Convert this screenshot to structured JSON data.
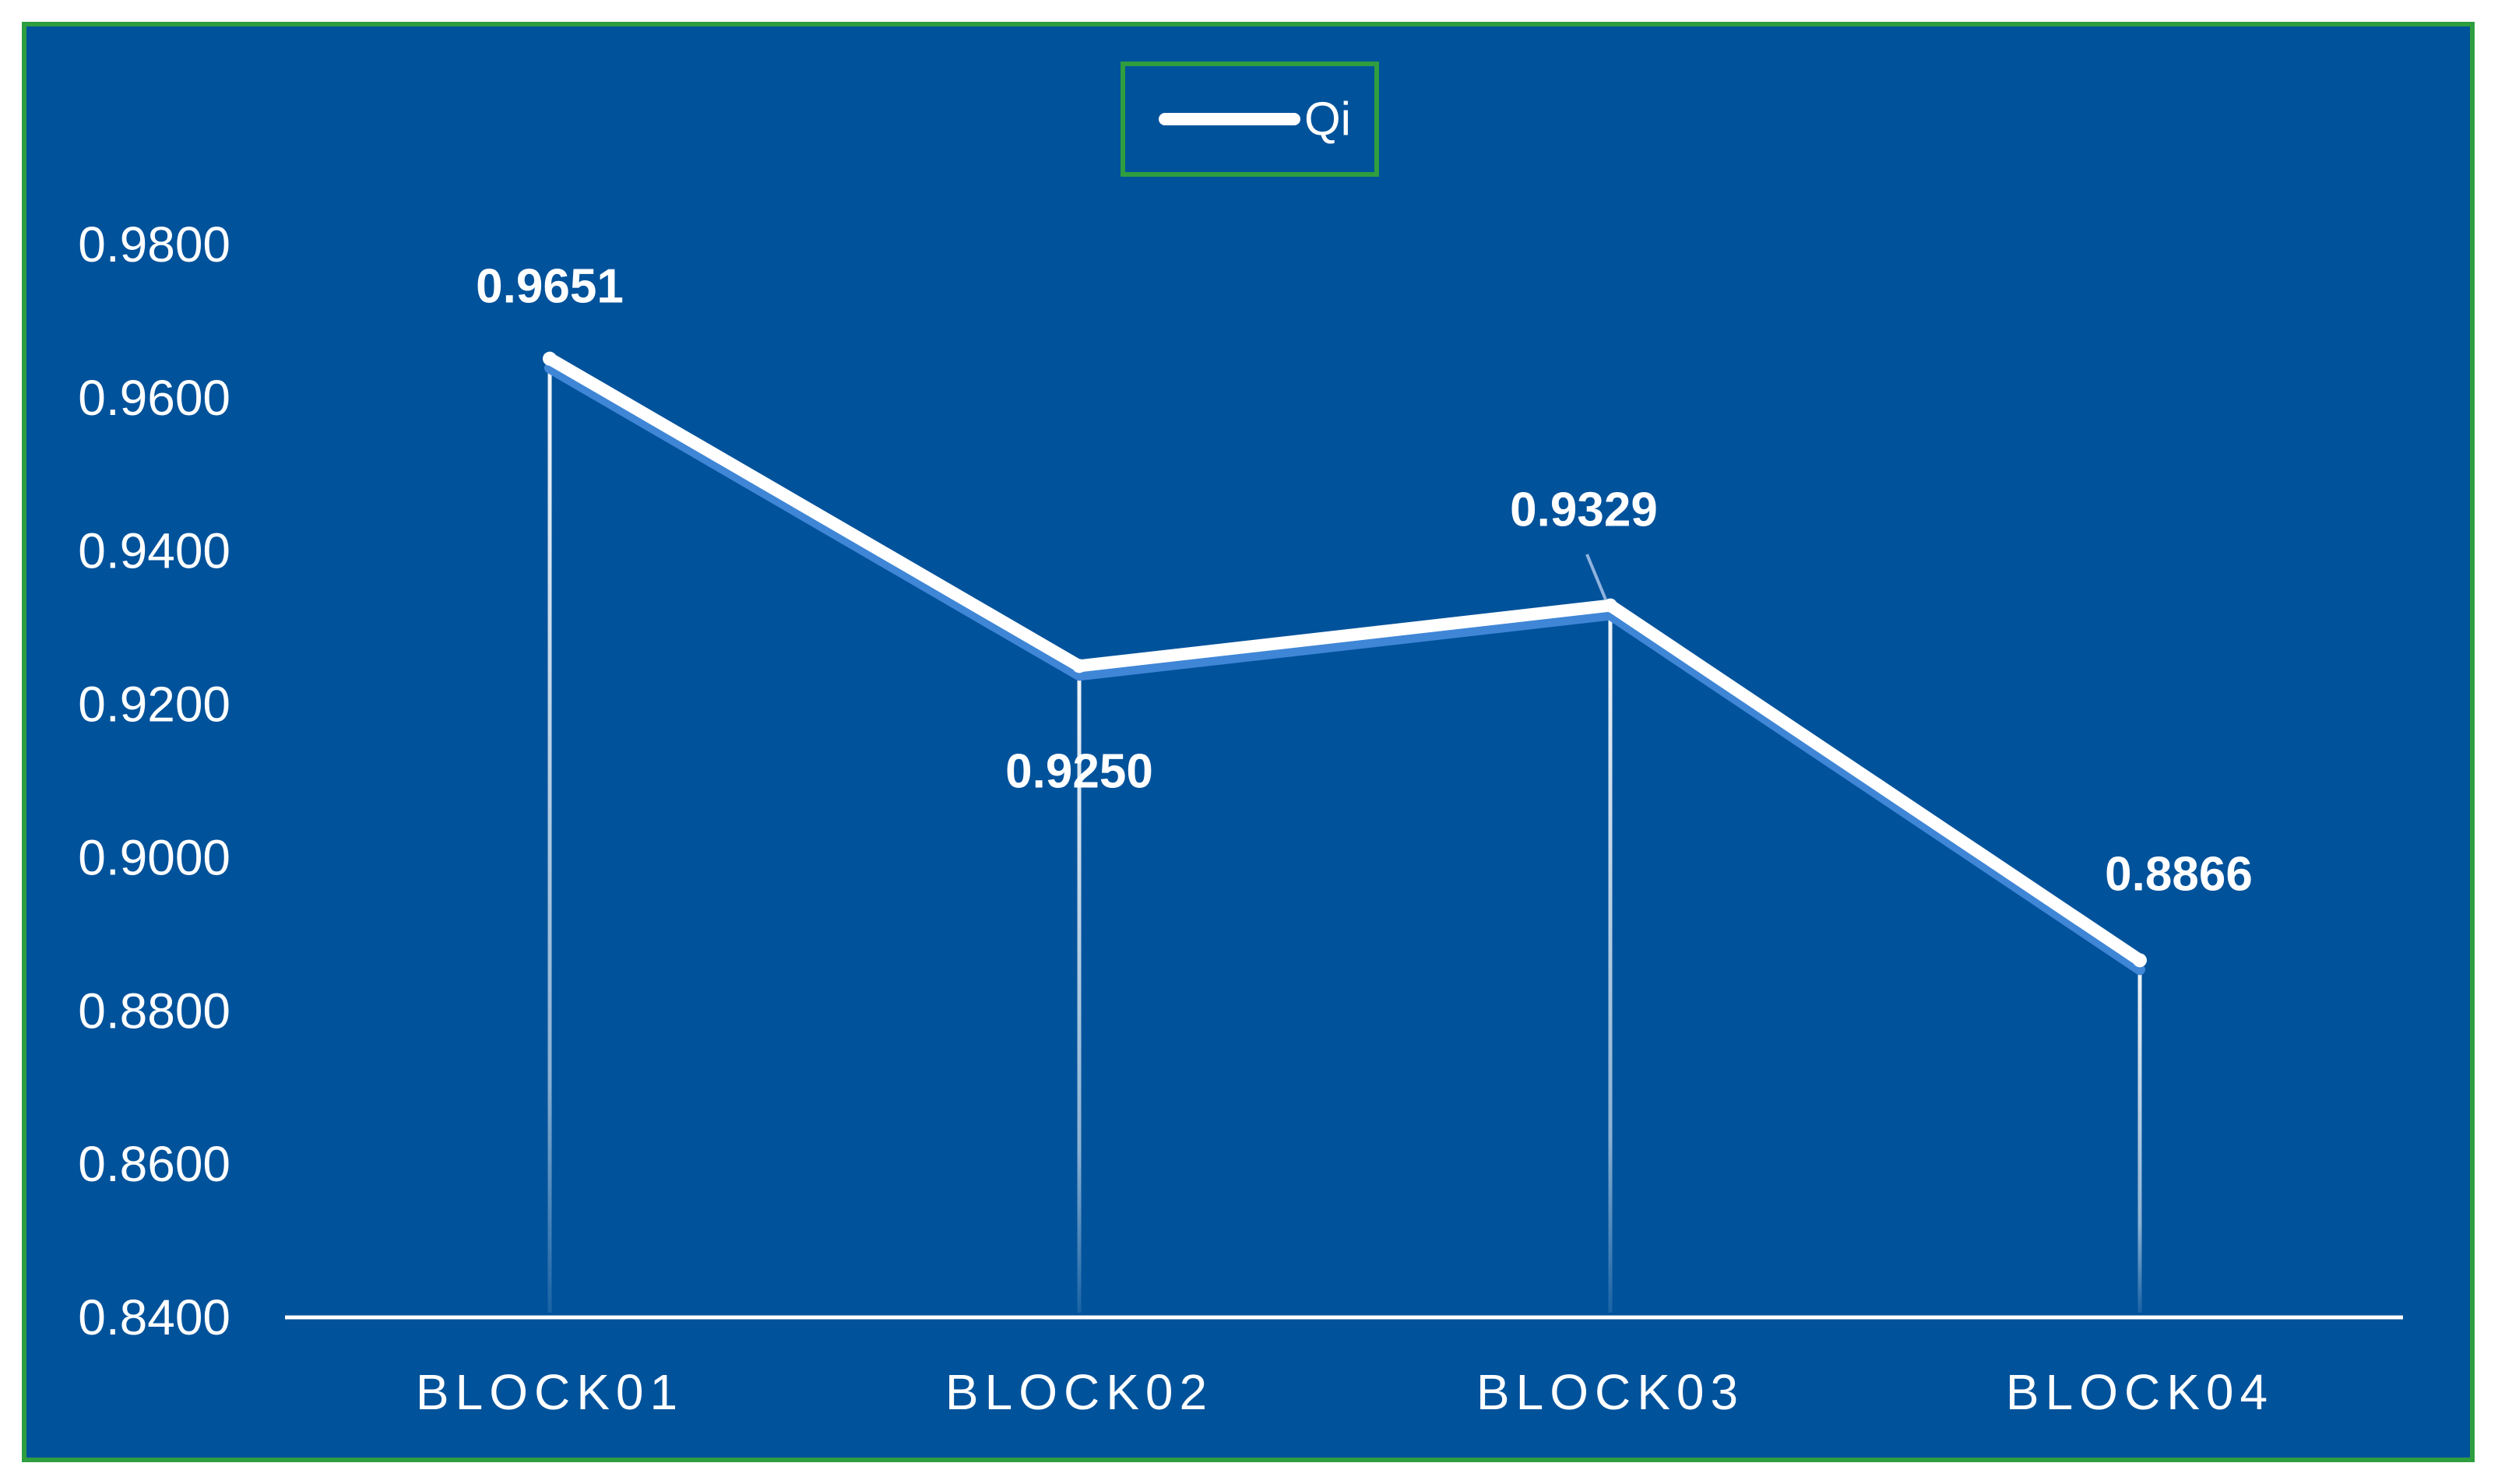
{
  "chart_data": {
    "type": "line",
    "categories": [
      "BLOCK01",
      "BLOCK02",
      "BLOCK03",
      "BLOCK04"
    ],
    "series": [
      {
        "name": "Qi",
        "values": [
          0.9651,
          0.925,
          0.9329,
          0.8866
        ]
      }
    ],
    "data_labels": [
      "0.9651",
      "0.9250",
      "0.9329",
      "0.8866"
    ],
    "y_ticks": [
      "0.8400",
      "0.8600",
      "0.8800",
      "0.9000",
      "0.9200",
      "0.9400",
      "0.9600",
      "0.9800"
    ],
    "ylim": [
      0.84,
      0.98
    ],
    "legend": {
      "position": "top-center",
      "labels": [
        "Qi"
      ]
    },
    "grid": false,
    "drop_lines": true,
    "colors": {
      "background": "#00529b",
      "border": "#2e9e3e",
      "line": "#ffffff",
      "text": "#ffffff"
    }
  }
}
